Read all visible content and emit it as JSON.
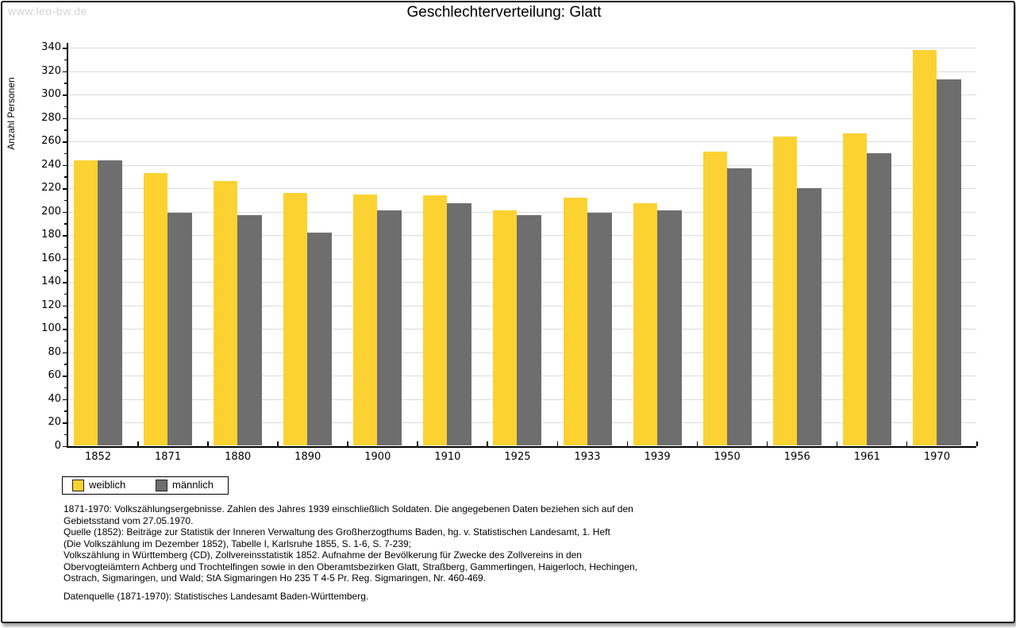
{
  "watermark": "www.leo-bw.de",
  "title": "Geschlechterverteilung: Glatt",
  "colors": {
    "weiblich": "#FCD232",
    "maennlich": "#6E6E6E",
    "gridline": "#DCDCDC",
    "axis": "#000000",
    "watermark": "#D3D3D3"
  },
  "chart_data": {
    "type": "bar",
    "title": "Geschlechterverteilung: Glatt",
    "ylabel": "Anzahl Personen",
    "xlabel": "",
    "ylim": [
      0,
      340
    ],
    "ytick_step": 20,
    "grid": true,
    "legend_position": "bottom-left",
    "categories": [
      "1852",
      "1871",
      "1880",
      "1890",
      "1900",
      "1910",
      "1925",
      "1933",
      "1939",
      "1950",
      "1956",
      "1961",
      "1970"
    ],
    "series": [
      {
        "name": "weiblich",
        "values": [
          244,
          233,
          226,
          216,
          215,
          214,
          201,
          212,
          207,
          251,
          264,
          267,
          338
        ]
      },
      {
        "name": "männlich",
        "values": [
          244,
          199,
          197,
          182,
          201,
          207,
          197,
          199,
          201,
          237,
          220,
          250,
          313
        ]
      }
    ]
  },
  "footnotes": {
    "lines": [
      "1871-1970: Volkszählungsergebnisse. Zahlen des Jahres 1939 einschließlich Soldaten. Die angegebenen Daten beziehen sich auf den",
      "Gebietsstand vom 27.05.1970.",
      "Quelle (1852): Beiträge zur Statistik der Inneren Verwaltung des Großherzogthums Baden, hg. v. Statistischen Landesamt, 1. Heft",
      "(Die Volkszählung im Dezember 1852), Tabelle I, Karlsruhe 1855, S. 1-6, S. 7-239;",
      "Volkszählung in Württemberg (CD), Zollvereinsstatistik 1852. Aufnahme der Bevölkerung für Zwecke des Zollvereins in den",
      "Obervogteiämtern Achberg und Trochtelfingen sowie in den Oberamtsbezirken Glatt, Straßberg, Gammertingen, Haigerloch, Hechingen,",
      "Ostrach, Sigmaringen, und Wald; StA Sigmaringen Ho 235 T 4-5 Pr. Reg. Sigmaringen, Nr. 460-469."
    ],
    "datenquelle": "Datenquelle (1871-1970): Statistisches Landesamt Baden-Württemberg."
  }
}
